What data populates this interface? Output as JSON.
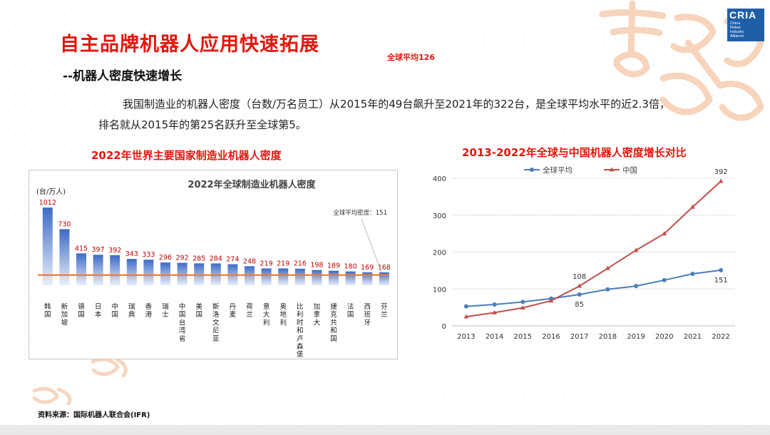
{
  "slide": {
    "title": "自主品牌机器人应用快速拓展",
    "subtitle": "--机器人密度快速增长",
    "top_note": "全球平均126",
    "paragraph_line1": "我国制造业的机器人密度（台数/万名员工）从2015年的49台飙升至2021年的322台，是全球平均水平的近2.3倍，",
    "paragraph_line2": "排名就从2015年的第25名跃升至全球第5。",
    "left_heading": "2022年世界主要国家制造业机器人密度",
    "right_heading": "2013-2022年全球与中国机器人密度增长对比",
    "source": "资料来源：国际机器人联合会(IFR)"
  },
  "logo": {
    "text": "CRIA",
    "subtext": [
      "China",
      "Robot",
      "Industry",
      "Alliance"
    ]
  },
  "colors": {
    "accent_red": "#e3170d",
    "bar_blue": "#4472c4",
    "avg_line": "#ed7d31",
    "global_line": "#4a7ebb",
    "china_line": "#c0504d"
  },
  "chart_data": [
    {
      "type": "bar",
      "title": "2022年全球制造业机器人密度",
      "ylabel": "(台/万人)",
      "categories": [
        "韩国",
        "新加坡",
        "德国",
        "日本",
        "中国",
        "瑞典",
        "香港",
        "瑞士",
        "中国台湾省",
        "美国",
        "斯洛文尼亚",
        "丹麦",
        "荷兰",
        "意大利",
        "奥地利",
        "比利时和卢森堡",
        "加拿大",
        "捷克共和国",
        "法国",
        "西班牙",
        "芬兰"
      ],
      "values": [
        1012,
        730,
        415,
        397,
        392,
        343,
        333,
        296,
        292,
        285,
        284,
        274,
        248,
        219,
        219,
        216,
        198,
        189,
        180,
        169,
        168
      ],
      "reference_line": {
        "value": 151,
        "label": "全球平均密度：151"
      },
      "ylim": [
        0,
        1100
      ]
    },
    {
      "type": "line",
      "x": [
        "2013",
        "2014",
        "2015",
        "2016",
        "2017",
        "2018",
        "2019",
        "2020",
        "2021",
        "2022"
      ],
      "series": [
        {
          "name": "全球平均",
          "values": [
            53,
            58,
            65,
            74,
            85,
            99,
            108,
            124,
            141,
            151
          ]
        },
        {
          "name": "中国",
          "values": [
            25,
            36,
            49,
            68,
            108,
            156,
            205,
            250,
            322,
            392
          ]
        }
      ],
      "data_labels": [
        {
          "series": "全球平均",
          "x": "2017",
          "text": "85"
        },
        {
          "series": "全球平均",
          "x": "2022",
          "text": "151"
        },
        {
          "series": "中国",
          "x": "2017",
          "text": "108"
        },
        {
          "series": "中国",
          "x": "2022",
          "text": "392"
        }
      ],
      "yticks": [
        "0",
        "100",
        "200",
        "300",
        "400"
      ],
      "ylim": [
        0,
        400
      ],
      "legend_position": "top",
      "grid": true
    }
  ]
}
